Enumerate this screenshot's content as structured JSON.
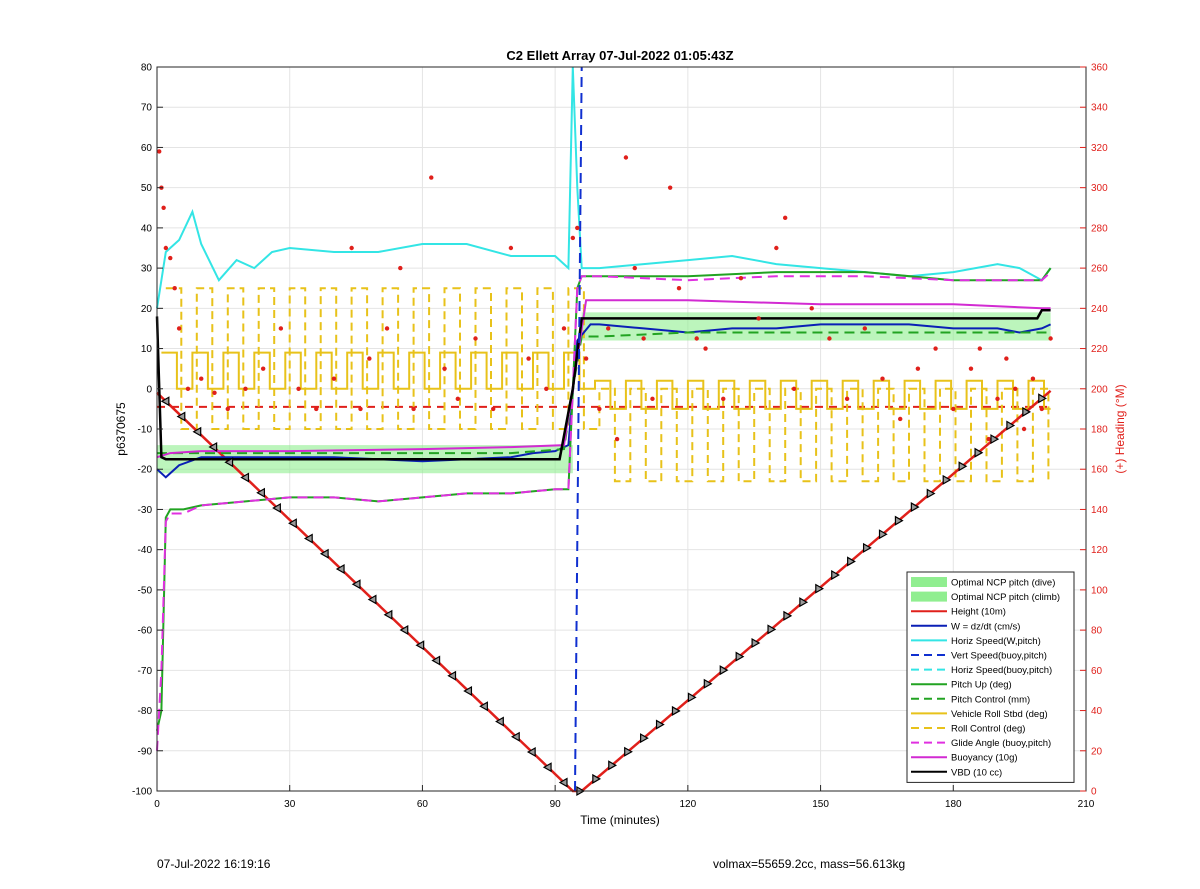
{
  "chart_data": {
    "type": "line",
    "title": "C2 Ellett Array 07-Jul-2022 01:05:43Z",
    "xlabel": "Time (minutes)",
    "ylabel": "p6370675",
    "y2label": "(+) Heading (°M)",
    "xlim": [
      0,
      210
    ],
    "ylim": [
      -100,
      80
    ],
    "y2lim": [
      0,
      360
    ],
    "xticks": [
      "0",
      "30",
      "60",
      "90",
      "120",
      "150",
      "180",
      "210"
    ],
    "yticks": [
      "80",
      "70",
      "60",
      "50",
      "40",
      "30",
      "20",
      "10",
      "0",
      "-10",
      "-20",
      "-30",
      "-40",
      "-50",
      "-60",
      "-70",
      "-80",
      "-90",
      "-100"
    ],
    "y2ticks": [
      "360",
      "340",
      "320",
      "300",
      "280",
      "260",
      "240",
      "220",
      "200",
      "180",
      "160",
      "140",
      "120",
      "100",
      "80",
      "60",
      "40",
      "20",
      "0"
    ],
    "grid": true,
    "legend_position": "bottom-right",
    "legend": [
      {
        "name": "Optimal NCP pitch (dive)",
        "style": "patch",
        "color": "#90ee90"
      },
      {
        "name": "Optimal NCP pitch (climb)",
        "style": "patch",
        "color": "#90ee90"
      },
      {
        "name": "Height (10m)",
        "style": "solid",
        "color": "#e0201b"
      },
      {
        "name": "W = dz/dt (cm/s)",
        "style": "solid",
        "color": "#0a1fb5"
      },
      {
        "name": "Horiz Speed(W,pitch)",
        "style": "solid",
        "color": "#33e5e5"
      },
      {
        "name": "Vert Speed(buoy,pitch)",
        "style": "dashed",
        "color": "#1030d0"
      },
      {
        "name": "Horiz Speed(buoy,pitch)",
        "style": "dashed",
        "color": "#33e5e5"
      },
      {
        "name": "Pitch Up (deg)",
        "style": "solid",
        "color": "#22a322"
      },
      {
        "name": "Pitch Control (mm)",
        "style": "dashed",
        "color": "#22a322"
      },
      {
        "name": "Vehicle Roll Stbd (deg)",
        "style": "solid",
        "color": "#e8c21a"
      },
      {
        "name": "Roll Control (deg)",
        "style": "dashed",
        "color": "#e8c21a"
      },
      {
        "name": "Glide Angle (buoy,pitch)",
        "style": "dashed",
        "color": "#e030e0"
      },
      {
        "name": "Buoyancy (10g)",
        "style": "solid",
        "color": "#d22ad2"
      },
      {
        "name": "VBD (10 cc)",
        "style": "solid",
        "color": "#000000"
      }
    ],
    "series": [
      {
        "name": "Height (10m)",
        "x": [
          0,
          94,
          96,
          202
        ],
        "y": [
          -1,
          -100,
          -100,
          -0.5
        ]
      },
      {
        "name": "Horiz Speed(W,pitch)",
        "x": [
          0,
          2,
          5,
          8,
          10,
          14,
          18,
          22,
          26,
          30,
          40,
          50,
          60,
          70,
          80,
          90,
          93,
          94,
          95,
          96,
          100,
          110,
          120,
          130,
          140,
          150,
          160,
          170,
          180,
          190,
          195,
          200,
          202
        ],
        "y": [
          20,
          34,
          37,
          44,
          36,
          27,
          32,
          30,
          34,
          35,
          34,
          34,
          36,
          36,
          33,
          33,
          30,
          80,
          50,
          30,
          30,
          31,
          32,
          33,
          31,
          30,
          29,
          28,
          29,
          31,
          30,
          27,
          30
        ]
      },
      {
        "name": "W = dz/dt (cm/s)",
        "x": [
          0,
          2,
          5,
          10,
          20,
          30,
          40,
          50,
          60,
          70,
          80,
          85,
          90,
          93,
          95,
          98,
          100,
          110,
          120,
          130,
          140,
          150,
          160,
          170,
          180,
          190,
          195,
          200,
          202
        ],
        "y": [
          -20,
          -22,
          -19,
          -17,
          -17,
          -17,
          -17,
          -17.5,
          -18,
          -17.5,
          -17,
          -16,
          -15.5,
          -14,
          12,
          16,
          16,
          15,
          14,
          15,
          15,
          16,
          16,
          16,
          15,
          15,
          14,
          15,
          16
        ]
      },
      {
        "name": "Pitch Up (deg)",
        "x": [
          0,
          1,
          2,
          3,
          6,
          10,
          20,
          30,
          40,
          50,
          60,
          70,
          80,
          90,
          93,
          95,
          96,
          100,
          120,
          140,
          160,
          180,
          200,
          202
        ],
        "y": [
          -85,
          -80,
          -32,
          -30,
          -30,
          -29,
          -28,
          -27,
          -27,
          -28,
          -27,
          -26,
          -26,
          -25,
          -25,
          25,
          28,
          28,
          28,
          29,
          29,
          27,
          27,
          30
        ]
      },
      {
        "name": "Pitch Control (mm)",
        "x": [
          0,
          5,
          20,
          40,
          60,
          80,
          92,
          94,
          96,
          100,
          120,
          140,
          160,
          180,
          200,
          202
        ],
        "y": [
          -16,
          -16,
          -16,
          -16,
          -16,
          -16,
          -15,
          0,
          13,
          13,
          14,
          14,
          14,
          14,
          14,
          14
        ]
      },
      {
        "name": "Glide Angle (buoy,pitch)",
        "x": [
          0,
          1,
          2,
          3,
          6,
          10,
          20,
          30,
          40,
          50,
          60,
          70,
          80,
          90,
          93,
          95,
          96,
          100,
          120,
          140,
          160,
          180,
          200,
          202
        ],
        "y": [
          -90,
          -70,
          -33,
          -31,
          -31,
          -29,
          -28,
          -27,
          -27,
          -28,
          -27,
          -26,
          -26,
          -25,
          -25,
          25,
          28,
          28,
          27,
          28,
          28,
          27,
          27,
          29
        ]
      },
      {
        "name": "Buoyancy (10g)",
        "x": [
          0,
          3,
          10,
          30,
          60,
          80,
          92,
          97,
          120,
          150,
          180,
          200,
          202
        ],
        "y": [
          -17,
          -16,
          -15.5,
          -15.5,
          -15,
          -14.5,
          -14,
          22,
          22,
          21,
          21,
          20,
          20
        ]
      },
      {
        "name": "VBD (10 cc)",
        "x": [
          0,
          1,
          2,
          91,
          94,
          96,
          150,
          199,
          200,
          202
        ],
        "y": [
          18,
          -17,
          -17.5,
          -17.5,
          0,
          17.5,
          17.5,
          17.5,
          19.5,
          19.5
        ]
      },
      {
        "name": "Vert Speed(buoy,pitch)",
        "x": [
          94.5,
          96
        ],
        "y": [
          -100,
          80
        ]
      },
      {
        "name": "Heading",
        "axis": "right",
        "x": [
          0.5,
          1,
          1.5,
          2,
          3,
          4,
          5,
          7,
          10,
          13,
          16,
          20,
          24,
          28,
          32,
          36,
          40,
          44,
          46,
          48,
          52,
          55,
          58,
          62,
          65,
          68,
          72,
          76,
          80,
          84,
          88,
          92,
          94,
          95,
          97,
          100,
          102,
          104,
          106,
          108,
          110,
          112,
          116,
          118,
          122,
          124,
          128,
          132,
          136,
          140,
          142,
          144,
          148,
          152,
          156,
          160,
          164,
          168,
          172,
          176,
          180,
          184,
          186,
          188,
          190,
          192,
          194,
          196,
          198,
          200,
          202
        ],
        "y": [
          318,
          300,
          290,
          270,
          265,
          250,
          230,
          200,
          205,
          198,
          190,
          200,
          210,
          230,
          200,
          190,
          205,
          270,
          190,
          215,
          230,
          260,
          190,
          305,
          210,
          195,
          225,
          190,
          270,
          215,
          200,
          230,
          275,
          280,
          215,
          190,
          230,
          175,
          315,
          260,
          225,
          195,
          300,
          250,
          225,
          220,
          195,
          255,
          235,
          270,
          285,
          200,
          240,
          225,
          195,
          230,
          205,
          185,
          210,
          220,
          190,
          210,
          220,
          175,
          195,
          215,
          200,
          180,
          205,
          190,
          225
        ]
      }
    ],
    "bands": [
      {
        "name": "Optimal NCP pitch (dive)",
        "x": [
          0,
          94
        ],
        "y": [
          -21,
          -14
        ]
      },
      {
        "name": "Optimal NCP pitch (climb)",
        "x": [
          96,
          202
        ],
        "y": [
          12,
          19
        ]
      }
    ],
    "reference_lines": [
      {
        "style": "dashed",
        "color": "#e0201b",
        "y": -4.5,
        "x": [
          0,
          202
        ]
      }
    ],
    "roll_control": {
      "period": 7,
      "high": 25,
      "low": -10,
      "climb_high": 0,
      "climb_low": -23
    },
    "vehicle_roll": {
      "dive_high": 9,
      "dive_low": 0,
      "climb_high": 2,
      "climb_low": -5
    }
  },
  "footer": {
    "left": "07-Jul-2022 16:19:16",
    "right": "volmax=55659.2cc, mass=56.613kg"
  }
}
